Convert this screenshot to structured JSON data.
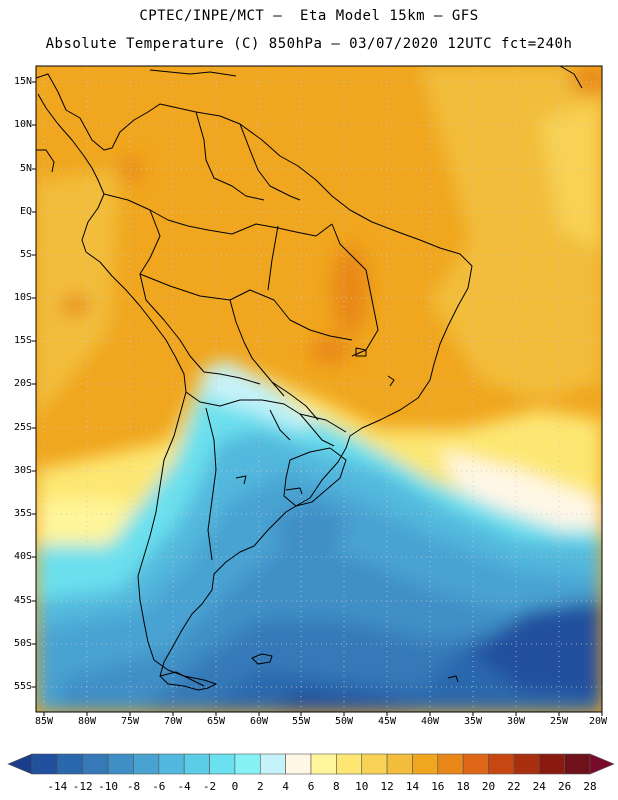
{
  "header": {
    "line1": "CPTEC/INPE/MCT –  Eta Model 15km – GFS",
    "line2": "Absolute Temperature (C) 850hPa – 03/07/2020 12UTC fct=240h"
  },
  "map": {
    "lat_labels": [
      "15N",
      "10N",
      "5N",
      "EQ",
      "5S",
      "10S",
      "15S",
      "20S",
      "25S",
      "30S",
      "35S",
      "40S",
      "45S",
      "50S",
      "55S"
    ],
    "lon_labels": [
      "85W",
      "80W",
      "75W",
      "70W",
      "65W",
      "60W",
      "55W",
      "50W",
      "45W",
      "40W",
      "35W",
      "30W",
      "25W",
      "20W"
    ]
  },
  "colorbar": {
    "labels": [
      "-14",
      "-12",
      "-10",
      "-8",
      "-6",
      "-4",
      "-2",
      "0",
      "2",
      "4",
      "6",
      "8",
      "10",
      "12",
      "14",
      "16",
      "18",
      "20",
      "22",
      "24",
      "26",
      "28"
    ],
    "colors": [
      "#1c3d8c",
      "#20509e",
      "#2a68ad",
      "#3579b8",
      "#3f8fc6",
      "#49a3d2",
      "#52b8dd",
      "#5ccde6",
      "#6be0ee",
      "#86f2f5",
      "#c6f3fa",
      "#fff7e6",
      "#fff59a",
      "#fde772",
      "#f8d255",
      "#f2bd3a",
      "#f0a61e",
      "#e98818",
      "#df6616",
      "#c84612",
      "#a8300e",
      "#8a1a10",
      "#70101a",
      "#7a0a2a"
    ]
  }
}
